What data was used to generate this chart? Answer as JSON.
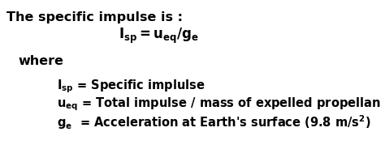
{
  "background_color": "#ffffff",
  "title_text": "The specific impulse is :",
  "title_fontsize": 11.5,
  "formula_fontsize": 12,
  "where_fontsize": 11.5,
  "def_fontsize": 10.5
}
